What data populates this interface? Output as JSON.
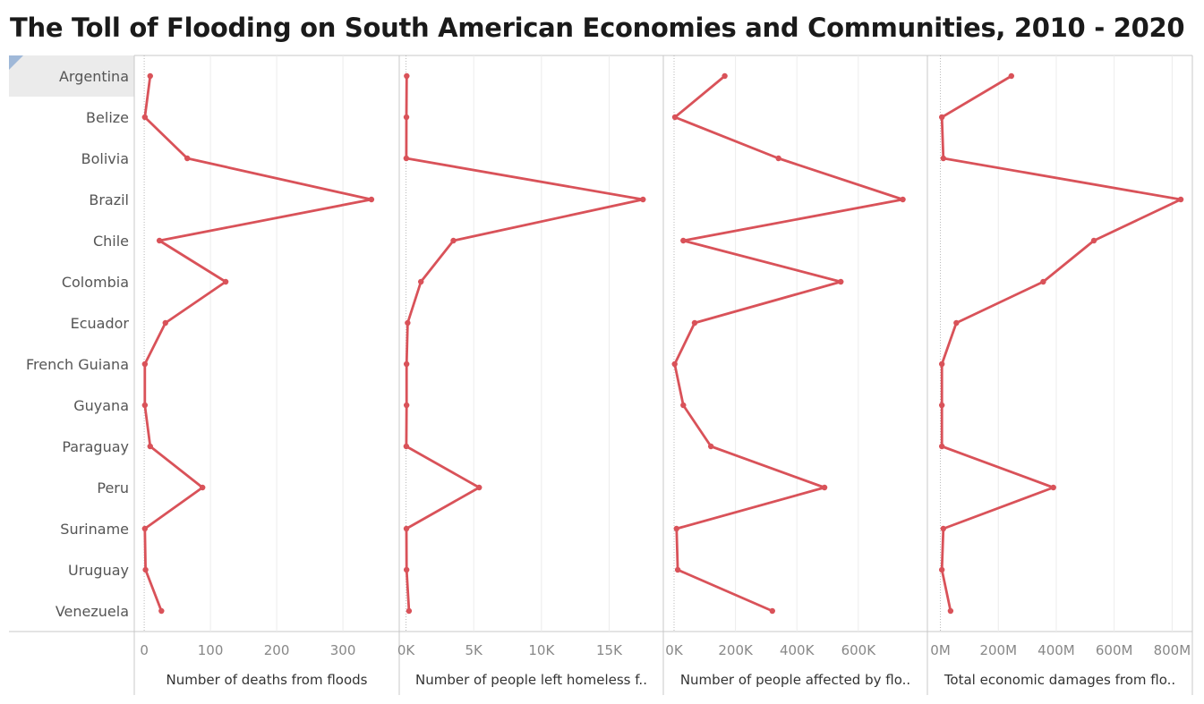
{
  "title": "The Toll of Flooding on South American Economies and Communities, 2010 - 2020",
  "colors": {
    "series": "#d95259",
    "divider": "#c8c8c8",
    "grid": "#ececec",
    "highlight": "#ebebeb"
  },
  "chart_data": {
    "type": "line",
    "orientation": "horizontal-panels",
    "categories": [
      "Argentina",
      "Belize",
      "Bolivia",
      "Brazil",
      "Chile",
      "Colombia",
      "Ecuador",
      "French Guiana",
      "Guyana",
      "Paraguay",
      "Peru",
      "Suriname",
      "Uruguay",
      "Venezuela"
    ],
    "highlighted_category": "Argentina",
    "panels": [
      {
        "axis_title": "Number of deaths from floods",
        "range": [
          -15,
          385
        ],
        "ticks": [
          0,
          100,
          200,
          300
        ],
        "tick_labels": [
          "0",
          "100",
          "200",
          "300"
        ],
        "values": [
          9,
          1,
          65,
          343,
          23,
          123,
          32,
          1,
          1,
          9,
          88,
          1,
          2,
          26
        ]
      },
      {
        "axis_title": "Number of people left homeless f..",
        "range": [
          -500,
          19000
        ],
        "ticks": [
          0,
          5000,
          10000,
          15000
        ],
        "tick_labels": [
          "0K",
          "5K",
          "10K",
          "15K"
        ],
        "values": [
          50,
          30,
          20,
          17500,
          3500,
          1100,
          120,
          40,
          40,
          20,
          5400,
          30,
          40,
          220
        ]
      },
      {
        "axis_title": "Number of people affected by flo..",
        "range": [
          -35000,
          825000
        ],
        "ticks": [
          0,
          200000,
          400000,
          600000
        ],
        "tick_labels": [
          "0K",
          "200K",
          "400K",
          "600K"
        ],
        "values": [
          165000,
          3000,
          340000,
          745000,
          30000,
          543000,
          67000,
          2000,
          30000,
          120000,
          490000,
          8000,
          12000,
          320000
        ]
      },
      {
        "axis_title": "Total economic damages from flo..",
        "range": [
          -45000000,
          870000000
        ],
        "ticks": [
          0,
          200000000,
          400000000,
          600000000,
          800000000
        ],
        "tick_labels": [
          "0M",
          "200M",
          "400M",
          "600M",
          "800M"
        ],
        "values": [
          245000000,
          5000000,
          10000000,
          830000000,
          530000000,
          355000000,
          55000000,
          5000000,
          5000000,
          5000000,
          390000000,
          10000000,
          5000000,
          35000000
        ]
      }
    ]
  }
}
